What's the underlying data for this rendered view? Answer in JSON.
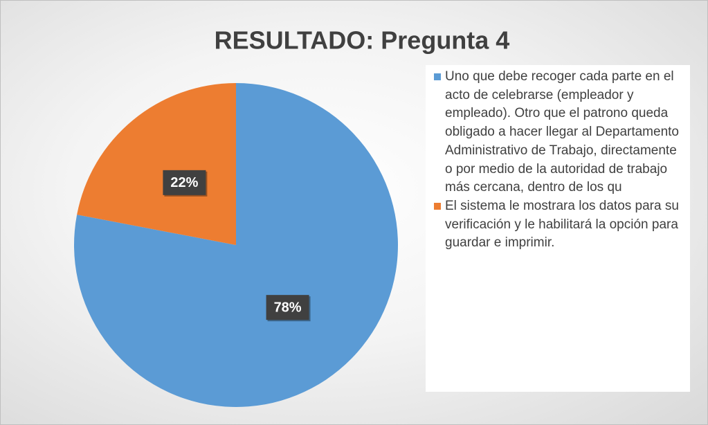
{
  "chart_data": {
    "type": "pie",
    "title": "RESULTADO: Pregunta 4",
    "categories": [
      "Uno que debe recoger cada parte en el acto de celebrarse (empleador y empleado). Otro que el patrono queda obligado a hacer llegar al Departamento Administrativo de Trabajo, directamente o por medio de la autoridad de trabajo más cercana, dentro de los qu",
      "El sistema le mostrara los datos para su verificación y le habilitará la opción para guardar e imprimir."
    ],
    "values": [
      78,
      22
    ],
    "value_labels": [
      "78%",
      "22%"
    ],
    "colors": [
      "#5b9bd5",
      "#ed7d31"
    ],
    "legend": "right"
  }
}
